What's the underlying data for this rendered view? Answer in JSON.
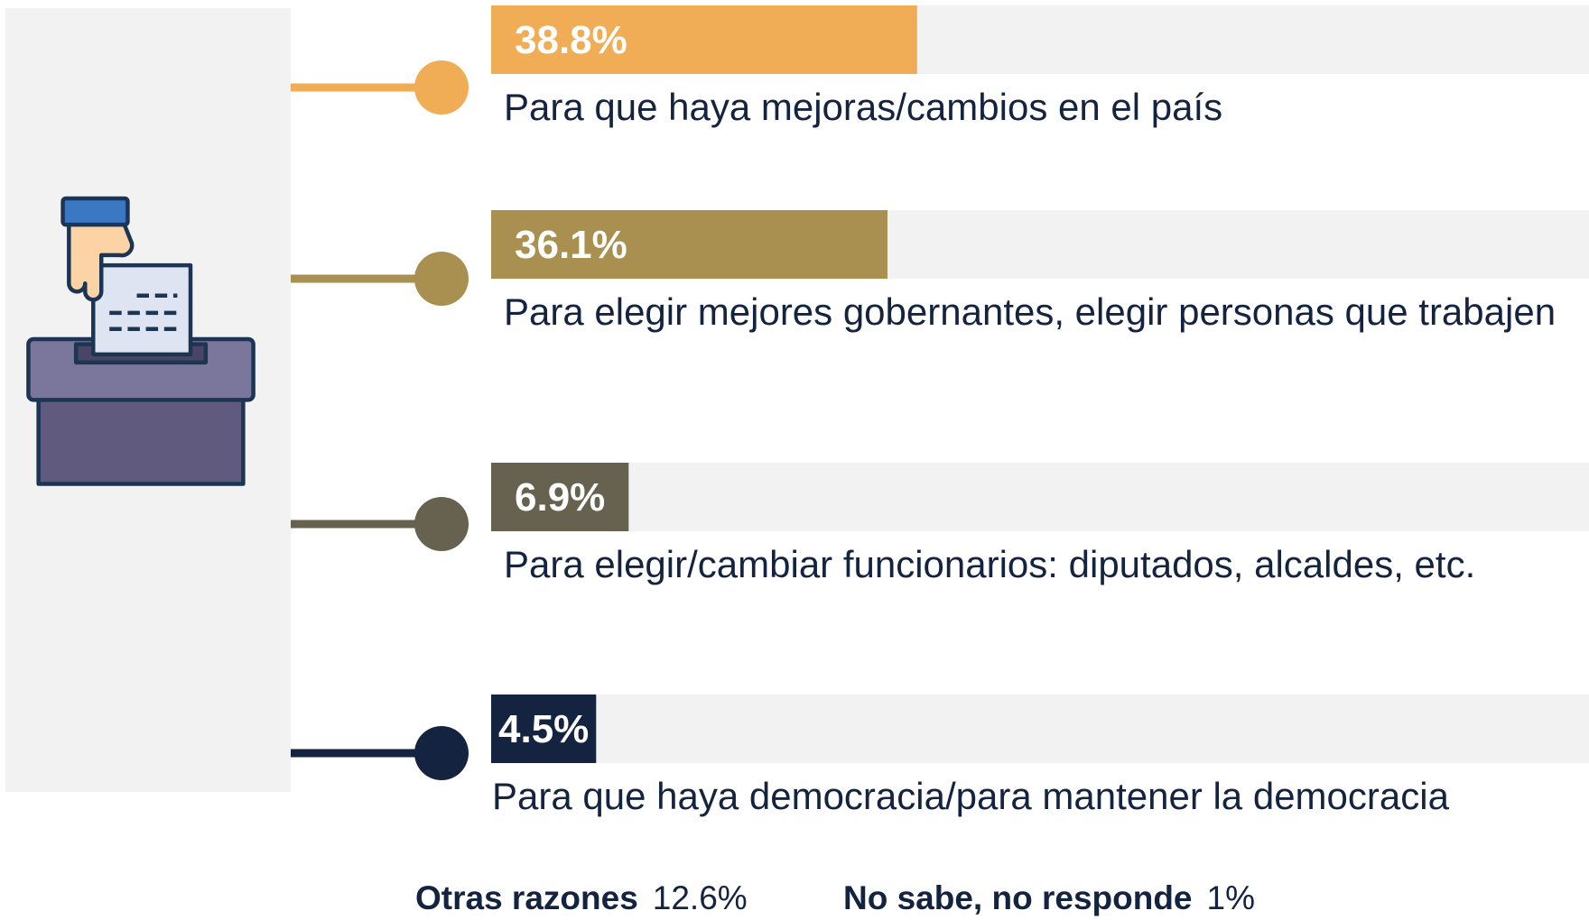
{
  "chart_data": {
    "type": "bar",
    "categories": [
      "Para que haya mejoras/cambios en el país",
      "Para elegir mejores gobernantes, elegir personas que trabajen",
      "Para elegir/cambiar funcionarios: diputados, alcaldes, etc.",
      "Para que haya democracia/para mantener la democracia"
    ],
    "values": [
      38.8,
      36.1,
      6.9,
      4.5
    ],
    "value_labels": [
      "38.8%",
      "36.1%",
      "6.9%",
      "4.5%"
    ],
    "colors": [
      "#f0ad55",
      "#a98f50",
      "#66624f",
      "#14233f"
    ],
    "xlim": [
      0,
      100
    ],
    "others": [
      {
        "name": "Otras razones",
        "value": 12.6,
        "value_label": "12.6%"
      },
      {
        "name": "No sabe, no responde",
        "value": 1,
        "value_label": "1%"
      }
    ]
  }
}
